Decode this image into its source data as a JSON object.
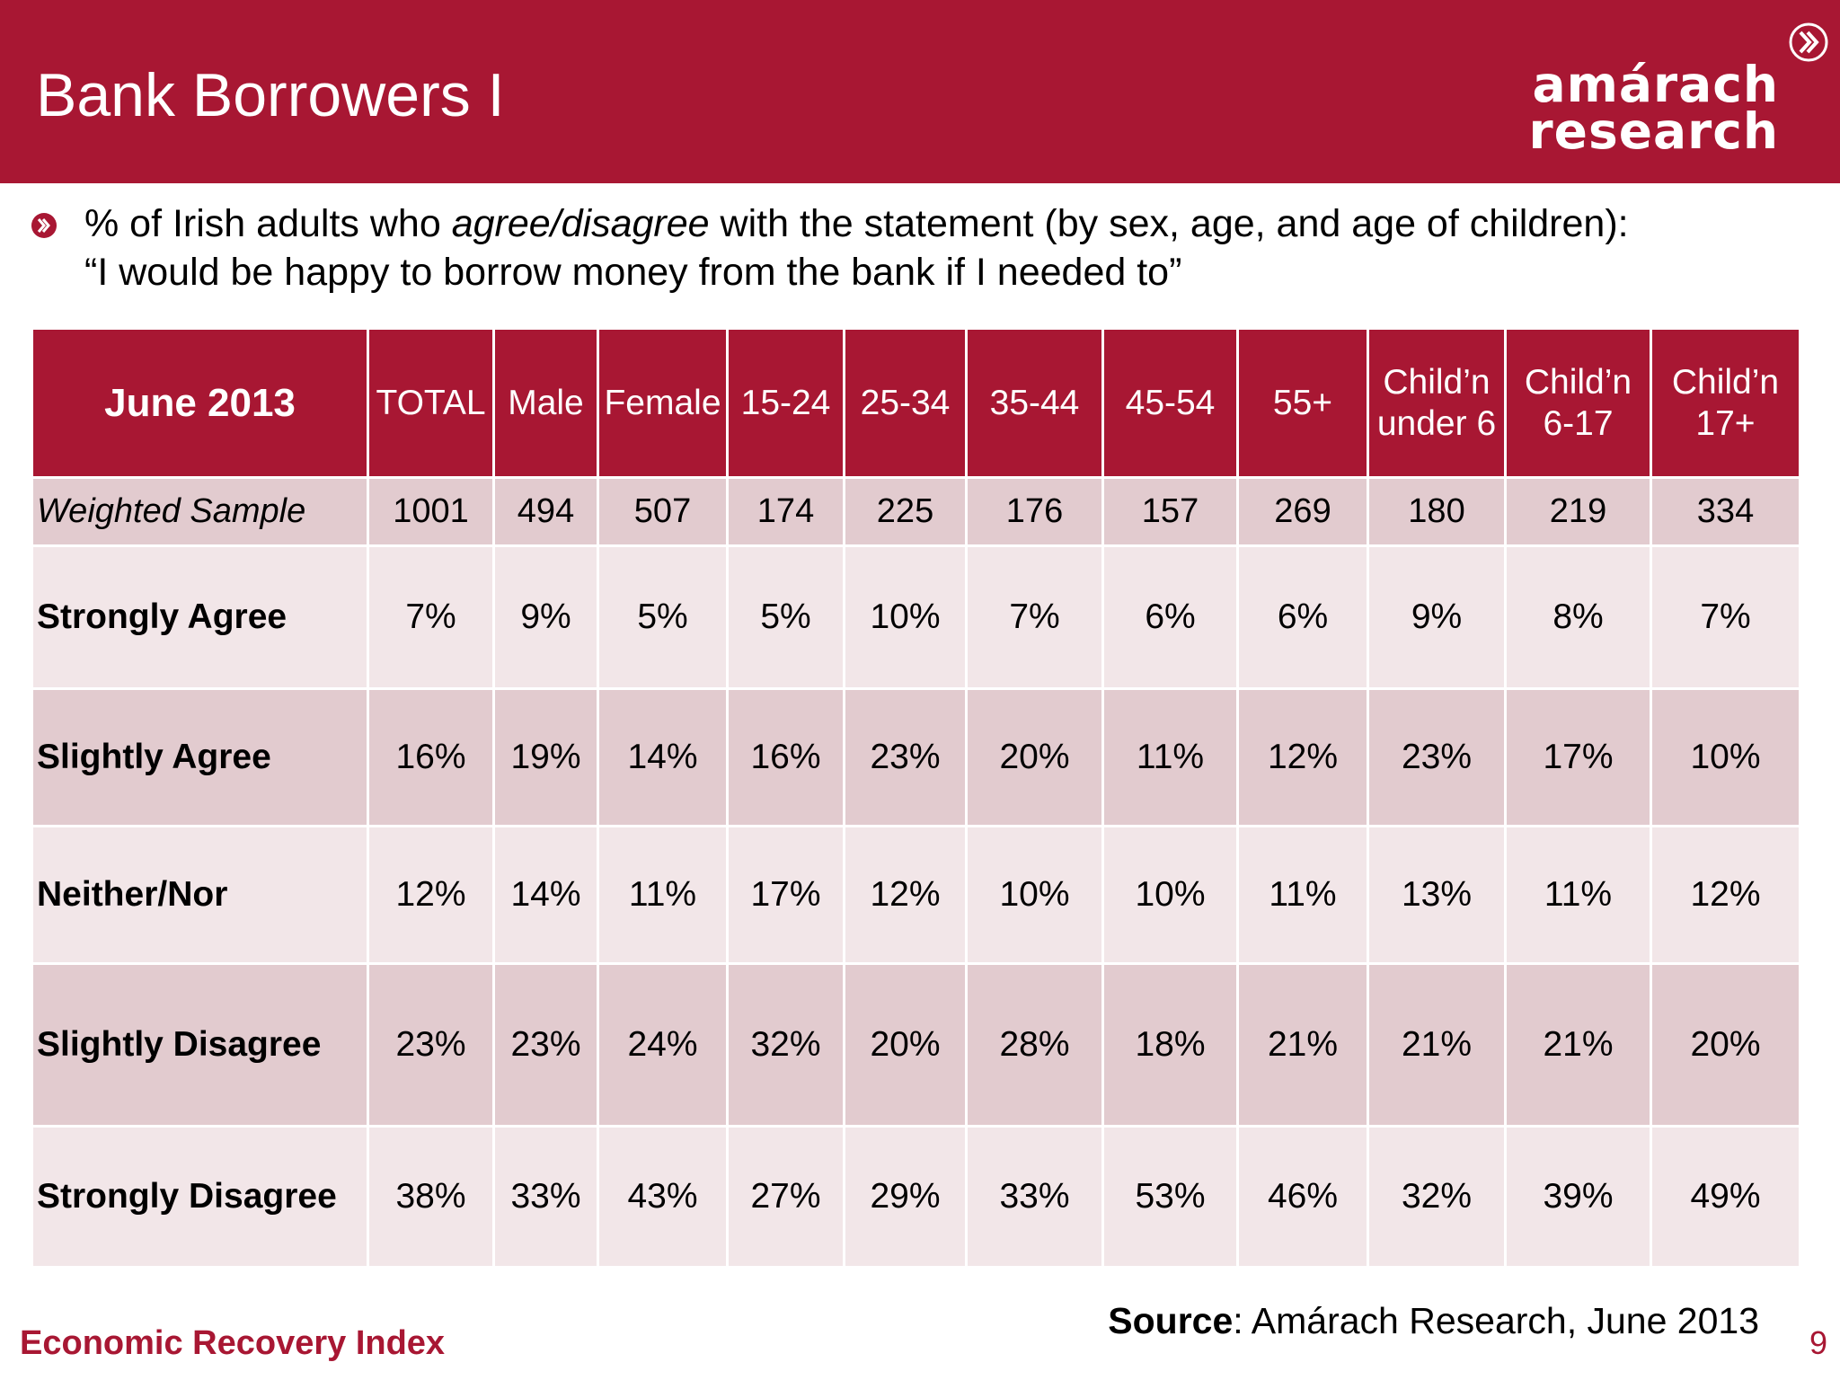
{
  "header": {
    "title": "Bank Borrowers I",
    "logo_line1": "amárach",
    "logo_line2": "research"
  },
  "subtitle": {
    "line1_pre": "% of Irish adults who ",
    "line1_em": "agree/disagree",
    "line1_post": " with the statement (by sex, age, and age of children):",
    "line2": "“I would be happy to borrow money from the bank if I needed to”"
  },
  "chart_data": {
    "type": "table",
    "corner_label": "June 2013",
    "columns": [
      {
        "line1": "TOTAL",
        "line2": ""
      },
      {
        "line1": "Male",
        "line2": ""
      },
      {
        "line1": "Female",
        "line2": ""
      },
      {
        "line1": "15-24",
        "line2": ""
      },
      {
        "line1": "25-34",
        "line2": ""
      },
      {
        "line1": "35-44",
        "line2": ""
      },
      {
        "line1": "45-54",
        "line2": ""
      },
      {
        "line1": "55+",
        "line2": ""
      },
      {
        "line1": "Child’n",
        "line2": "under 6"
      },
      {
        "line1": "Child’n",
        "line2": "6-17"
      },
      {
        "line1": "Child’n",
        "line2": "17+"
      }
    ],
    "rows": [
      {
        "label": "Weighted Sample",
        "values": [
          "1001",
          "494",
          "507",
          "174",
          "225",
          "176",
          "157",
          "269",
          "180",
          "219",
          "334"
        ]
      },
      {
        "label": "Strongly Agree",
        "values": [
          "7%",
          "9%",
          "5%",
          "5%",
          "10%",
          "7%",
          "6%",
          "6%",
          "9%",
          "8%",
          "7%"
        ]
      },
      {
        "label": "Slightly Agree",
        "values": [
          "16%",
          "19%",
          "14%",
          "16%",
          "23%",
          "20%",
          "11%",
          "12%",
          "23%",
          "17%",
          "10%"
        ]
      },
      {
        "label": "Neither/Nor",
        "values": [
          "12%",
          "14%",
          "11%",
          "17%",
          "12%",
          "10%",
          "10%",
          "11%",
          "13%",
          "11%",
          "12%"
        ]
      },
      {
        "label": "Slightly Disagree",
        "values": [
          "23%",
          "23%",
          "24%",
          "32%",
          "20%",
          "28%",
          "18%",
          "21%",
          "21%",
          "21%",
          "20%"
        ]
      },
      {
        "label": "Strongly Disagree",
        "values": [
          "38%",
          "33%",
          "43%",
          "27%",
          "29%",
          "33%",
          "53%",
          "46%",
          "32%",
          "39%",
          "49%"
        ]
      }
    ]
  },
  "source": {
    "label": "Source",
    "text": ": Amárach Research, June 2013"
  },
  "footer": {
    "text": "Economic Recovery Index",
    "page": "9"
  },
  "colors": {
    "brand": "#a81733",
    "row_dark": "#e2cbcf",
    "row_light": "#f2e6e8"
  }
}
